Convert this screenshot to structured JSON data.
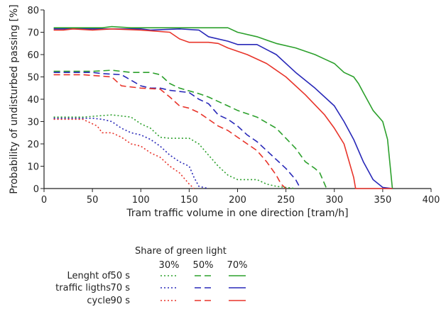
{
  "chart_data": {
    "type": "line",
    "xlabel": "Tram traffic volume in one direction [tram/h]",
    "ylabel": "Probability of undisturbed passing [%]",
    "xlim": [
      0,
      400
    ],
    "ylim": [
      0,
      80
    ],
    "x_ticks": [
      0,
      50,
      100,
      150,
      200,
      250,
      300,
      350,
      400
    ],
    "y_ticks": [
      0,
      10,
      20,
      30,
      40,
      50,
      60,
      70,
      80
    ],
    "grid": false,
    "colors": {
      "green": "#2ca02c",
      "blue": "#2828b8",
      "red": "#e8342a"
    },
    "series": [
      {
        "share": "70%",
        "cycle": "50 s",
        "color": "green",
        "dash": "solid",
        "points": [
          [
            10,
            72
          ],
          [
            60,
            72
          ],
          [
            70,
            72.5
          ],
          [
            90,
            72
          ],
          [
            140,
            72
          ],
          [
            190,
            72
          ],
          [
            200,
            70
          ],
          [
            220,
            68
          ],
          [
            240,
            65
          ],
          [
            260,
            63
          ],
          [
            280,
            60
          ],
          [
            290,
            58
          ],
          [
            300,
            56
          ],
          [
            310,
            52
          ],
          [
            320,
            50
          ],
          [
            325,
            47
          ],
          [
            330,
            43
          ],
          [
            340,
            35
          ],
          [
            350,
            30
          ],
          [
            355,
            22
          ],
          [
            360,
            0
          ]
        ]
      },
      {
        "share": "70%",
        "cycle": "70 s",
        "color": "blue",
        "dash": "solid",
        "points": [
          [
            10,
            71.5
          ],
          [
            70,
            71.5
          ],
          [
            100,
            71.5
          ],
          [
            110,
            71
          ],
          [
            140,
            71.5
          ],
          [
            160,
            71
          ],
          [
            170,
            68
          ],
          [
            190,
            66
          ],
          [
            200,
            64.5
          ],
          [
            220,
            64.5
          ],
          [
            240,
            60
          ],
          [
            260,
            52
          ],
          [
            280,
            45
          ],
          [
            300,
            37
          ],
          [
            310,
            30
          ],
          [
            320,
            22
          ],
          [
            330,
            12
          ],
          [
            340,
            4
          ],
          [
            350,
            0.5
          ],
          [
            360,
            0
          ]
        ]
      },
      {
        "share": "70%",
        "cycle": "90 s",
        "color": "red",
        "dash": "solid",
        "points": [
          [
            10,
            71
          ],
          [
            20,
            71
          ],
          [
            30,
            71.5
          ],
          [
            50,
            71
          ],
          [
            70,
            71.5
          ],
          [
            100,
            71
          ],
          [
            130,
            70
          ],
          [
            140,
            67
          ],
          [
            150,
            65.5
          ],
          [
            170,
            65.5
          ],
          [
            180,
            65
          ],
          [
            190,
            63
          ],
          [
            210,
            60
          ],
          [
            230,
            56
          ],
          [
            250,
            50
          ],
          [
            270,
            42
          ],
          [
            290,
            33
          ],
          [
            300,
            27
          ],
          [
            310,
            20
          ],
          [
            320,
            5
          ],
          [
            322,
            0
          ],
          [
            360,
            0
          ]
        ]
      },
      {
        "share": "50%",
        "cycle": "50 s",
        "color": "green",
        "dash": "dashed",
        "points": [
          [
            10,
            52.5
          ],
          [
            50,
            52.5
          ],
          [
            70,
            53
          ],
          [
            90,
            52
          ],
          [
            110,
            52
          ],
          [
            120,
            51
          ],
          [
            130,
            47
          ],
          [
            140,
            45
          ],
          [
            160,
            42.5
          ],
          [
            170,
            41
          ],
          [
            180,
            39
          ],
          [
            190,
            37
          ],
          [
            200,
            35
          ],
          [
            220,
            32
          ],
          [
            240,
            27
          ],
          [
            260,
            18
          ],
          [
            270,
            12
          ],
          [
            280,
            9
          ],
          [
            285,
            7
          ],
          [
            290,
            2
          ],
          [
            292,
            0
          ]
        ]
      },
      {
        "share": "50%",
        "cycle": "70 s",
        "color": "blue",
        "dash": "dashed",
        "points": [
          [
            10,
            52
          ],
          [
            50,
            52
          ],
          [
            60,
            51.5
          ],
          [
            80,
            51
          ],
          [
            100,
            46
          ],
          [
            110,
            45
          ],
          [
            120,
            45
          ],
          [
            130,
            44
          ],
          [
            150,
            43
          ],
          [
            160,
            40
          ],
          [
            170,
            38
          ],
          [
            180,
            33
          ],
          [
            190,
            31
          ],
          [
            200,
            28
          ],
          [
            210,
            24
          ],
          [
            220,
            21
          ],
          [
            230,
            17
          ],
          [
            240,
            13
          ],
          [
            250,
            9
          ],
          [
            260,
            4
          ],
          [
            265,
            0
          ]
        ]
      },
      {
        "share": "50%",
        "cycle": "90 s",
        "color": "red",
        "dash": "dashed",
        "points": [
          [
            10,
            51
          ],
          [
            40,
            51
          ],
          [
            70,
            50
          ],
          [
            80,
            46
          ],
          [
            100,
            45
          ],
          [
            120,
            44.5
          ],
          [
            130,
            41
          ],
          [
            140,
            37
          ],
          [
            150,
            36
          ],
          [
            160,
            34
          ],
          [
            170,
            31
          ],
          [
            180,
            28
          ],
          [
            190,
            26
          ],
          [
            200,
            23
          ],
          [
            210,
            20
          ],
          [
            220,
            17
          ],
          [
            230,
            12
          ],
          [
            240,
            6
          ],
          [
            245,
            2
          ],
          [
            250,
            0
          ]
        ]
      },
      {
        "share": "30%",
        "cycle": "50 s",
        "color": "green",
        "dash": "dotted",
        "points": [
          [
            10,
            32
          ],
          [
            40,
            32
          ],
          [
            70,
            33
          ],
          [
            90,
            32
          ],
          [
            100,
            29
          ],
          [
            110,
            27
          ],
          [
            120,
            23
          ],
          [
            130,
            22.5
          ],
          [
            150,
            22.5
          ],
          [
            160,
            20
          ],
          [
            170,
            15
          ],
          [
            180,
            10
          ],
          [
            190,
            6
          ],
          [
            200,
            4
          ],
          [
            220,
            4
          ],
          [
            230,
            2
          ],
          [
            240,
            1
          ],
          [
            260,
            0
          ]
        ]
      },
      {
        "share": "30%",
        "cycle": "70 s",
        "color": "blue",
        "dash": "dotted",
        "points": [
          [
            10,
            31.5
          ],
          [
            50,
            31.5
          ],
          [
            60,
            31
          ],
          [
            70,
            30
          ],
          [
            80,
            27
          ],
          [
            90,
            25
          ],
          [
            100,
            24
          ],
          [
            110,
            22
          ],
          [
            120,
            19
          ],
          [
            130,
            15
          ],
          [
            140,
            12
          ],
          [
            150,
            10
          ],
          [
            155,
            5
          ],
          [
            160,
            1
          ],
          [
            170,
            0
          ]
        ]
      },
      {
        "share": "30%",
        "cycle": "90 s",
        "color": "red",
        "dash": "dotted",
        "points": [
          [
            10,
            31
          ],
          [
            40,
            31
          ],
          [
            55,
            28
          ],
          [
            60,
            25
          ],
          [
            70,
            25
          ],
          [
            80,
            23
          ],
          [
            90,
            20
          ],
          [
            100,
            19
          ],
          [
            110,
            16
          ],
          [
            120,
            14
          ],
          [
            130,
            10
          ],
          [
            140,
            7
          ],
          [
            150,
            2
          ],
          [
            155,
            0
          ]
        ]
      }
    ]
  },
  "legend": {
    "title": "Share of green light",
    "columns": [
      "30%",
      "50%",
      "70%"
    ],
    "row_label_lines": [
      "Lenght of",
      "traffic ligths",
      "cycle"
    ],
    "rows": [
      "50 s",
      "70 s",
      "90 s"
    ]
  }
}
